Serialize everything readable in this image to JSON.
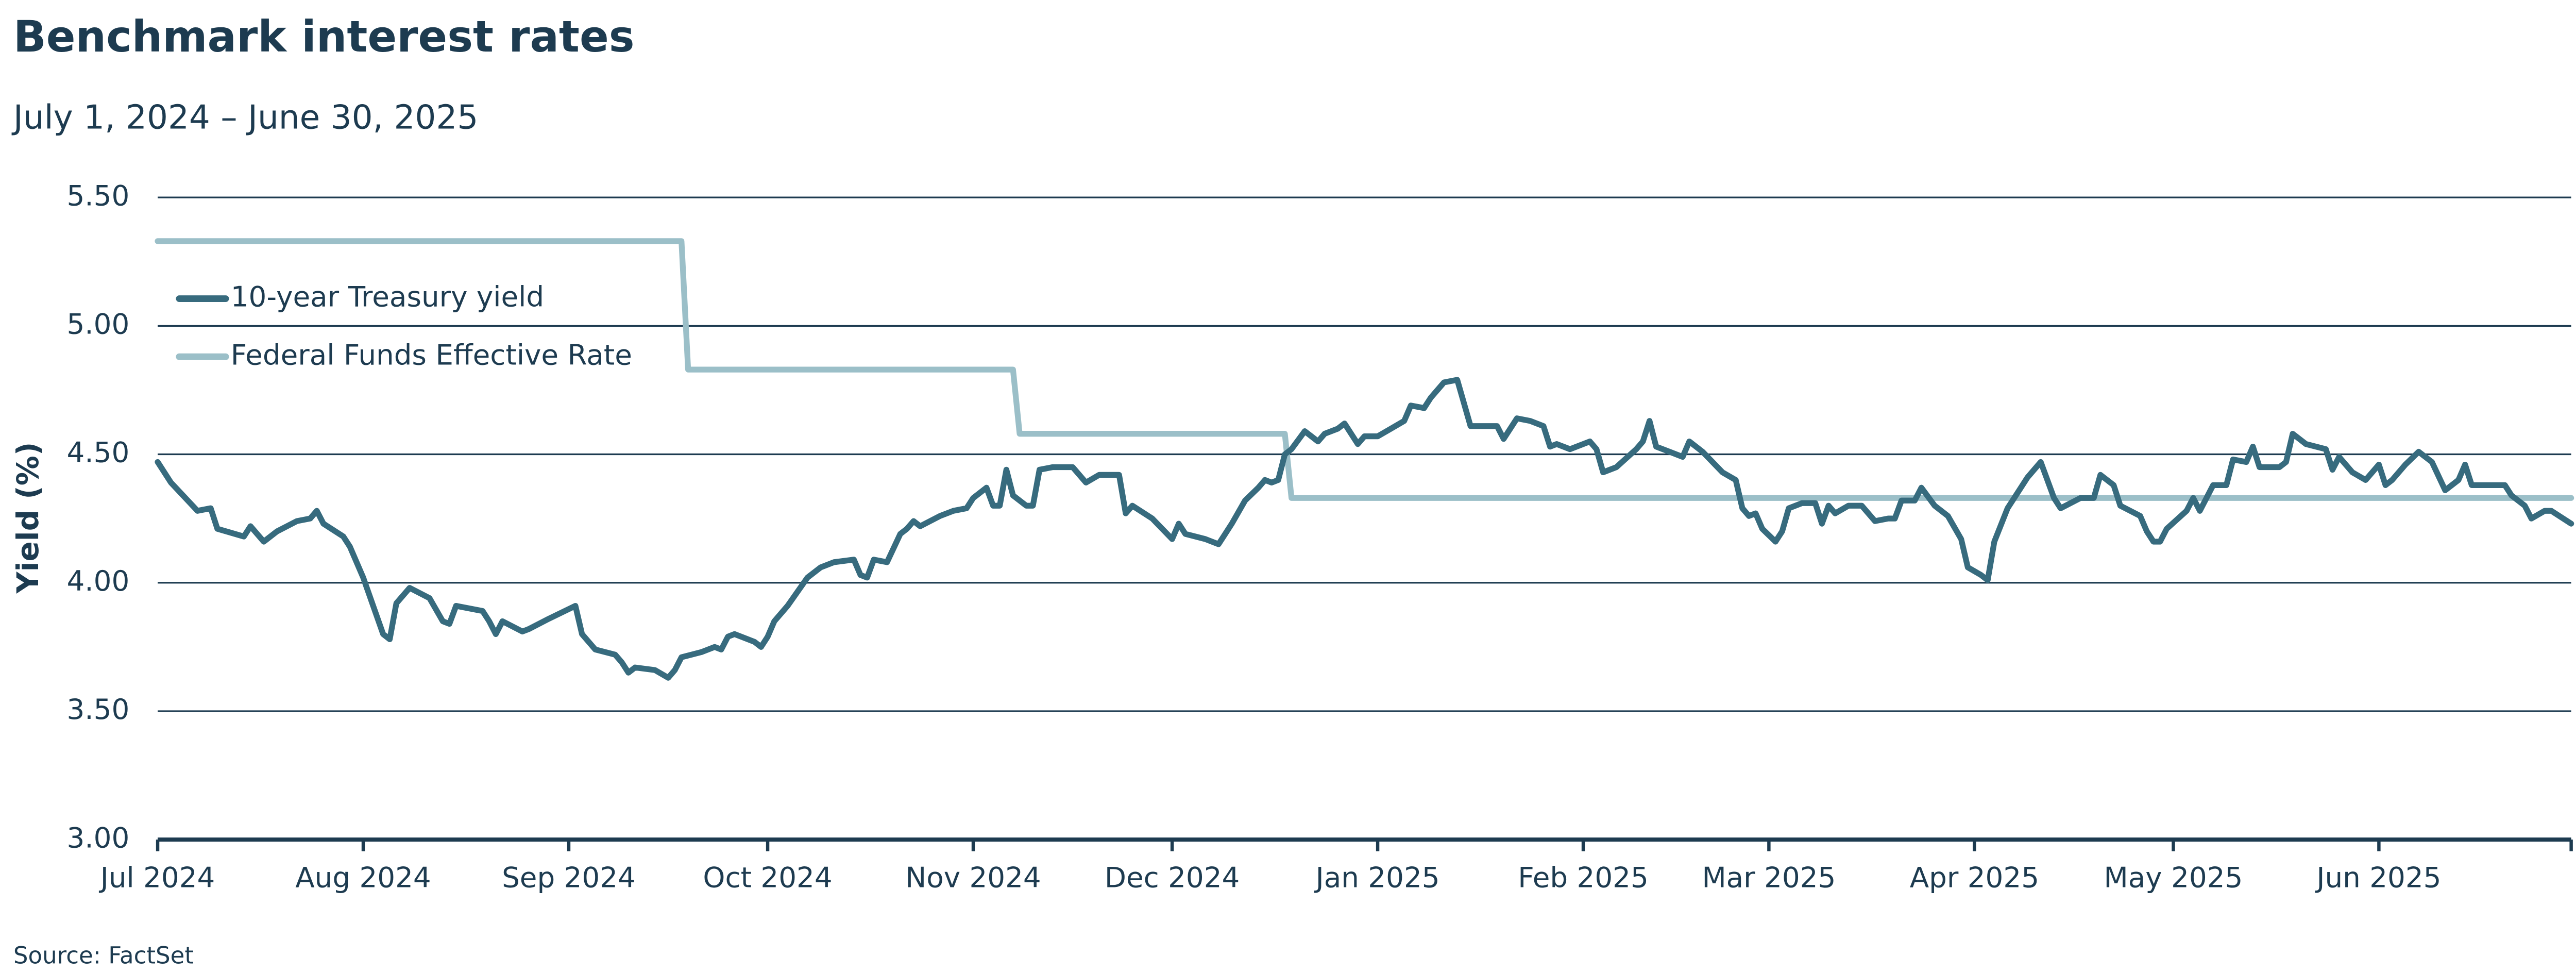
{
  "chart_data": {
    "type": "line",
    "title": "Benchmark interest rates",
    "subtitle": "July 1, 2024 – June 30, 2025",
    "y_label": "Yield (%)",
    "source": "Source: FactSet",
    "legend": "upper left",
    "grid": true,
    "xlim": [
      "2024-07-01",
      "2025-06-30"
    ],
    "xticks": [
      {
        "value": "2024-07-01",
        "label": "Jul 2024"
      },
      {
        "value": "2024-08-01",
        "label": "Aug 2024"
      },
      {
        "value": "2024-09-01",
        "label": "Sep 2024"
      },
      {
        "value": "2024-10-01",
        "label": "Oct 2024"
      },
      {
        "value": "2024-11-01",
        "label": "Nov 2024"
      },
      {
        "value": "2024-12-01",
        "label": "Dec 2024"
      },
      {
        "value": "2025-01-01",
        "label": "Jan 2025"
      },
      {
        "value": "2025-02-01",
        "label": "Feb 2025"
      },
      {
        "value": "2025-03-01",
        "label": "Mar 2025"
      },
      {
        "value": "2025-04-01",
        "label": "Apr 2025"
      },
      {
        "value": "2025-05-01",
        "label": "May 2025"
      },
      {
        "value": "2025-06-01",
        "label": "Jun 2025"
      }
    ],
    "ylim": [
      3,
      5.5
    ],
    "yticks": [
      {
        "value": 3,
        "label": "3.00"
      },
      {
        "value": 3.5,
        "label": "3.50"
      },
      {
        "value": 4,
        "label": "4.00"
      },
      {
        "value": 4.5,
        "label": "4.50"
      },
      {
        "value": 5,
        "label": "5.00"
      },
      {
        "value": 5.5,
        "label": "5.50"
      }
    ],
    "series": [
      {
        "name": "10-year Treasury yield",
        "color": "#376b7e",
        "x": [
          "2024-07-01",
          "2024-07-03",
          "2024-07-07",
          "2024-07-09",
          "2024-07-10",
          "2024-07-14",
          "2024-07-15",
          "2024-07-17",
          "2024-07-19",
          "2024-07-22",
          "2024-07-24",
          "2024-07-25",
          "2024-07-26",
          "2024-07-29",
          "2024-07-30",
          "2024-08-01",
          "2024-08-04",
          "2024-08-05",
          "2024-08-06",
          "2024-08-08",
          "2024-08-11",
          "2024-08-13",
          "2024-08-14",
          "2024-08-15",
          "2024-08-19",
          "2024-08-20",
          "2024-08-21",
          "2024-08-22",
          "2024-08-25",
          "2024-08-26",
          "2024-08-29",
          "2024-09-02",
          "2024-09-03",
          "2024-09-05",
          "2024-09-08",
          "2024-09-09",
          "2024-09-10",
          "2024-09-11",
          "2024-09-14",
          "2024-09-16",
          "2024-09-17",
          "2024-09-18",
          "2024-09-21",
          "2024-09-23",
          "2024-09-24",
          "2024-09-25",
          "2024-09-26",
          "2024-09-29",
          "2024-09-30",
          "2024-10-01",
          "2024-10-02",
          "2024-10-04",
          "2024-10-07",
          "2024-10-09",
          "2024-10-11",
          "2024-10-14",
          "2024-10-15",
          "2024-10-16",
          "2024-10-17",
          "2024-10-19",
          "2024-10-21",
          "2024-10-22",
          "2024-10-23",
          "2024-10-24",
          "2024-10-27",
          "2024-10-29",
          "2024-10-31",
          "2024-11-01",
          "2024-11-03",
          "2024-11-04",
          "2024-11-05",
          "2024-11-06",
          "2024-11-07",
          "2024-11-09",
          "2024-11-10",
          "2024-11-11",
          "2024-11-13",
          "2024-11-16",
          "2024-11-18",
          "2024-11-20",
          "2024-11-23",
          "2024-11-24",
          "2024-11-25",
          "2024-11-28",
          "2024-12-01",
          "2024-12-02",
          "2024-12-03",
          "2024-12-06",
          "2024-12-08",
          "2024-12-09",
          "2024-12-10",
          "2024-12-12",
          "2024-12-14",
          "2024-12-15",
          "2024-12-16",
          "2024-12-17",
          "2024-12-18",
          "2024-12-19",
          "2024-12-21",
          "2024-12-22",
          "2024-12-23",
          "2024-12-24",
          "2024-12-26",
          "2024-12-27",
          "2024-12-29",
          "2024-12-30",
          "2025-01-01",
          "2025-01-03",
          "2025-01-05",
          "2025-01-06",
          "2025-01-08",
          "2025-01-09",
          "2025-01-11",
          "2025-01-13",
          "2025-01-15",
          "2025-01-19",
          "2025-01-20",
          "2025-01-22",
          "2025-01-24",
          "2025-01-26",
          "2025-01-27",
          "2025-01-28",
          "2025-01-30",
          "2025-02-01",
          "2025-02-02",
          "2025-02-03",
          "2025-02-04",
          "2025-02-06",
          "2025-02-09",
          "2025-02-10",
          "2025-02-11",
          "2025-02-12",
          "2025-02-14",
          "2025-02-16",
          "2025-02-17",
          "2025-02-19",
          "2025-02-22",
          "2025-02-24",
          "2025-02-25",
          "2025-02-26",
          "2025-02-27",
          "2025-02-28",
          "2025-03-02",
          "2025-03-03",
          "2025-03-04",
          "2025-03-06",
          "2025-03-08",
          "2025-03-09",
          "2025-03-10",
          "2025-03-11",
          "2025-03-13",
          "2025-03-15",
          "2025-03-17",
          "2025-03-19",
          "2025-03-20",
          "2025-03-21",
          "2025-03-23",
          "2025-03-24",
          "2025-03-26",
          "2025-03-28",
          "2025-03-30",
          "2025-03-31",
          "2025-04-02",
          "2025-04-03",
          "2025-04-04",
          "2025-04-06",
          "2025-04-07",
          "2025-04-09",
          "2025-04-11",
          "2025-04-13",
          "2025-04-14",
          "2025-04-17",
          "2025-04-19",
          "2025-04-20",
          "2025-04-22",
          "2025-04-23",
          "2025-04-26",
          "2025-04-27",
          "2025-04-28",
          "2025-04-29",
          "2025-04-30",
          "2025-05-03",
          "2025-05-04",
          "2025-05-05",
          "2025-05-07",
          "2025-05-09",
          "2025-05-10",
          "2025-05-12",
          "2025-05-13",
          "2025-05-14",
          "2025-05-17",
          "2025-05-18",
          "2025-05-19",
          "2025-05-21",
          "2025-05-24",
          "2025-05-25",
          "2025-05-26",
          "2025-05-28",
          "2025-05-30",
          "2025-06-01",
          "2025-06-02",
          "2025-06-03",
          "2025-06-05",
          "2025-06-07",
          "2025-06-09",
          "2025-06-11",
          "2025-06-13",
          "2025-06-14",
          "2025-06-15",
          "2025-06-20",
          "2025-06-21",
          "2025-06-23",
          "2025-06-24",
          "2025-06-26",
          "2025-06-27",
          "2025-06-30"
        ],
        "values": [
          4.47,
          4.39,
          4.28,
          4.29,
          4.21,
          4.18,
          4.22,
          4.16,
          4.2,
          4.24,
          4.25,
          4.28,
          4.23,
          4.18,
          4.14,
          4.02,
          3.8,
          3.78,
          3.92,
          3.98,
          3.94,
          3.85,
          3.84,
          3.91,
          3.89,
          3.85,
          3.8,
          3.85,
          3.81,
          3.82,
          3.86,
          3.91,
          3.8,
          3.74,
          3.72,
          3.69,
          3.65,
          3.67,
          3.66,
          3.63,
          3.66,
          3.71,
          3.73,
          3.75,
          3.74,
          3.79,
          3.8,
          3.77,
          3.75,
          3.79,
          3.85,
          3.91,
          4.02,
          4.06,
          4.08,
          4.09,
          4.03,
          4.02,
          4.09,
          4.08,
          4.19,
          4.21,
          4.24,
          4.22,
          4.26,
          4.28,
          4.29,
          4.33,
          4.37,
          4.3,
          4.3,
          4.44,
          4.34,
          4.3,
          4.3,
          4.44,
          4.45,
          4.45,
          4.39,
          4.42,
          4.42,
          4.27,
          4.3,
          4.25,
          4.17,
          4.23,
          4.19,
          4.17,
          4.15,
          4.19,
          4.23,
          4.32,
          4.37,
          4.4,
          4.39,
          4.4,
          4.5,
          4.52,
          4.59,
          4.57,
          4.55,
          4.58,
          4.6,
          4.62,
          4.54,
          4.57,
          4.57,
          4.6,
          4.63,
          4.69,
          4.68,
          4.72,
          4.78,
          4.79,
          4.61,
          4.61,
          4.56,
          4.64,
          4.63,
          4.61,
          4.53,
          4.54,
          4.52,
          4.54,
          4.55,
          4.52,
          4.43,
          4.45,
          4.52,
          4.55,
          4.63,
          4.53,
          4.51,
          4.49,
          4.55,
          4.51,
          4.43,
          4.4,
          4.29,
          4.26,
          4.27,
          4.21,
          4.16,
          4.2,
          4.29,
          4.31,
          4.31,
          4.23,
          4.3,
          4.27,
          4.3,
          4.3,
          4.24,
          4.25,
          4.25,
          4.32,
          4.32,
          4.37,
          4.3,
          4.26,
          4.17,
          4.06,
          4.03,
          4.01,
          4.16,
          4.29,
          4.33,
          4.41,
          4.47,
          4.33,
          4.29,
          4.33,
          4.33,
          4.42,
          4.38,
          4.3,
          4.26,
          4.2,
          4.16,
          4.16,
          4.21,
          4.28,
          4.33,
          4.28,
          4.38,
          4.38,
          4.48,
          4.47,
          4.53,
          4.45,
          4.45,
          4.47,
          4.58,
          4.54,
          4.52,
          4.44,
          4.49,
          4.43,
          4.4,
          4.46,
          4.38,
          4.4,
          4.46,
          4.51,
          4.47,
          4.36,
          4.4,
          4.46,
          4.38,
          4.38,
          4.34,
          4.3,
          4.25,
          4.28,
          4.28,
          4.23
        ]
      },
      {
        "name": "Federal Funds Effective Rate",
        "color": "#9bbfc8",
        "x": [
          "2024-07-01",
          "2024-09-18",
          "2024-09-19",
          "2024-11-07",
          "2024-11-08",
          "2024-12-18",
          "2024-12-19",
          "2025-06-30"
        ],
        "values": [
          5.33,
          5.33,
          4.83,
          4.83,
          4.58,
          4.58,
          4.33,
          4.33
        ]
      }
    ]
  }
}
